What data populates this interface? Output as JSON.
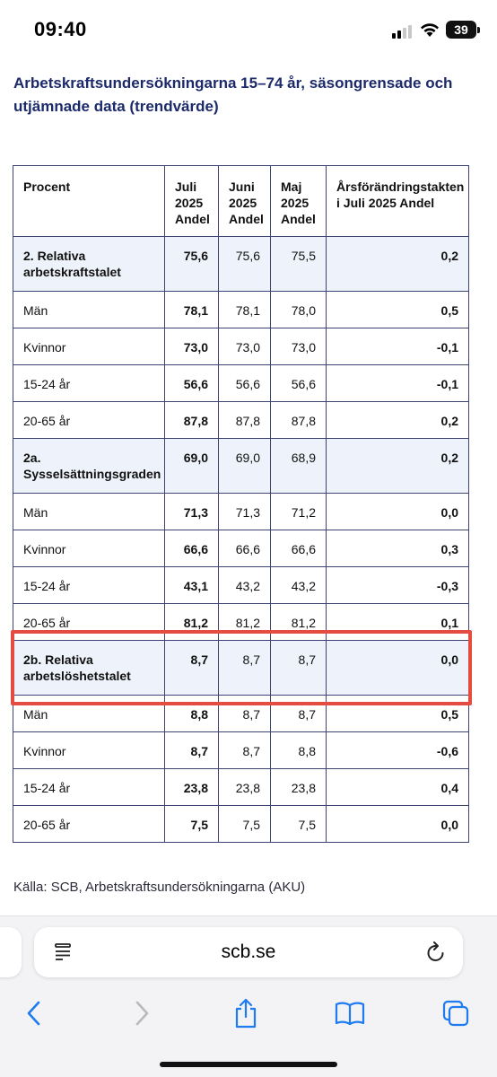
{
  "status_bar": {
    "time": "09:40",
    "battery": "39"
  },
  "article": {
    "title": "Arbetskraftsundersökningarna 15–74 år, säsongrensade och utjämnade data (trendvärde)",
    "source": "Källa: SCB, Arbetskraftsundersökningarna (AKU)"
  },
  "table": {
    "headers": [
      "Procent",
      "Juli 2025 Andel",
      "Juni 2025 Andel",
      "Maj 2025 Andel",
      "Årsförändringstakten i Juli 2025 Andel"
    ],
    "rows": [
      {
        "label": "2. Relativa arbetskraftstalet",
        "group": true,
        "values": [
          "75,6",
          "75,6",
          "75,5",
          "0,2"
        ]
      },
      {
        "label": "Män",
        "group": false,
        "values": [
          "78,1",
          "78,1",
          "78,0",
          "0,5"
        ]
      },
      {
        "label": "Kvinnor",
        "group": false,
        "values": [
          "73,0",
          "73,0",
          "73,0",
          "-0,1"
        ]
      },
      {
        "label": "15-24 år",
        "group": false,
        "values": [
          "56,6",
          "56,6",
          "56,6",
          "-0,1"
        ]
      },
      {
        "label": "20-65 år",
        "group": false,
        "values": [
          "87,8",
          "87,8",
          "87,8",
          "0,2"
        ]
      },
      {
        "label": "2a. Sysselsättningsgraden",
        "group": true,
        "values": [
          "69,0",
          "69,0",
          "68,9",
          "0,2"
        ]
      },
      {
        "label": "Män",
        "group": false,
        "values": [
          "71,3",
          "71,3",
          "71,2",
          "0,0"
        ]
      },
      {
        "label": "Kvinnor",
        "group": false,
        "values": [
          "66,6",
          "66,6",
          "66,6",
          "0,3"
        ]
      },
      {
        "label": "15-24 år",
        "group": false,
        "values": [
          "43,1",
          "43,2",
          "43,2",
          "-0,3"
        ]
      },
      {
        "label": "20-65 år",
        "group": false,
        "values": [
          "81,2",
          "81,2",
          "81,2",
          "0,1"
        ]
      },
      {
        "label": "2b. Relativa arbetslöshetstalet",
        "group": true,
        "values": [
          "8,7",
          "8,7",
          "8,7",
          "0,0"
        ]
      },
      {
        "label": "Män",
        "group": false,
        "values": [
          "8,8",
          "8,7",
          "8,7",
          "0,5"
        ]
      },
      {
        "label": "Kvinnor",
        "group": false,
        "values": [
          "8,7",
          "8,7",
          "8,8",
          "-0,6"
        ]
      },
      {
        "label": "15-24 år",
        "group": false,
        "values": [
          "23,8",
          "23,8",
          "23,8",
          "0,4"
        ]
      },
      {
        "label": "20-65 år",
        "group": false,
        "values": [
          "7,5",
          "7,5",
          "7,5",
          "0,0"
        ]
      }
    ]
  },
  "browser": {
    "url": "scb.se",
    "icons": [
      "reader-icon",
      "reload-icon",
      "back-icon",
      "forward-icon",
      "share-icon",
      "bookmarks-icon",
      "tabs-icon"
    ]
  },
  "colors": {
    "title": "#1c2a6b",
    "table_border": "#3d4372",
    "group_row_bg": "#eef3fb",
    "highlight": "#e64b3f"
  }
}
